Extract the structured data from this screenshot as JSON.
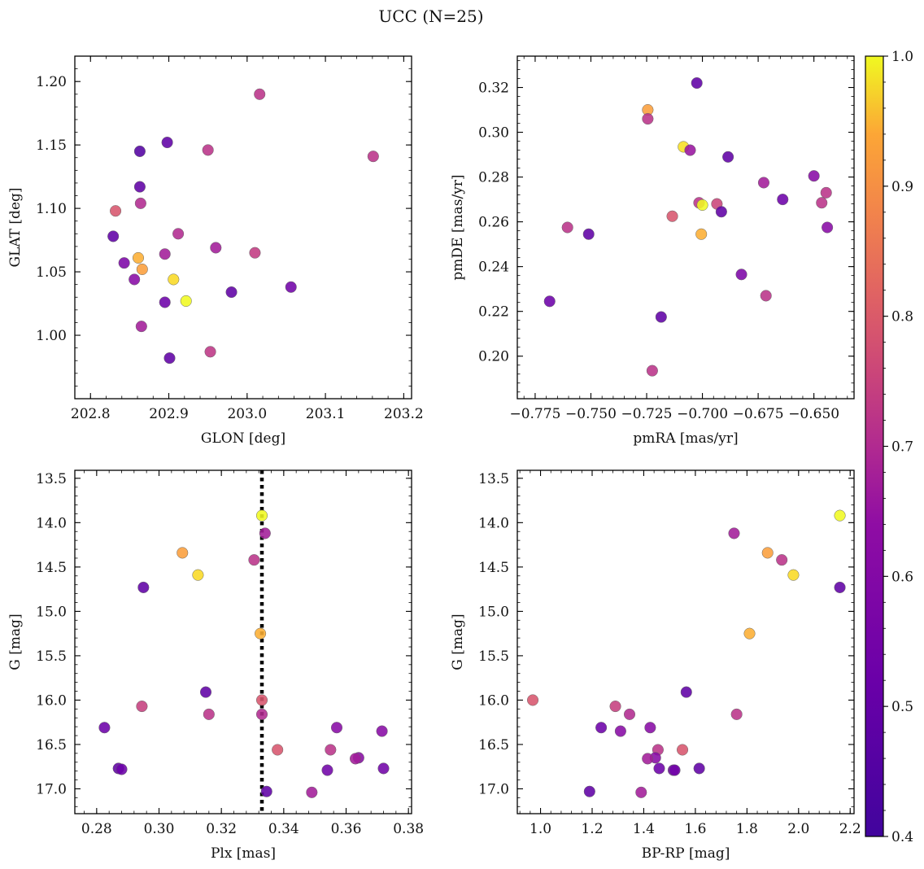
{
  "figure": {
    "title": "UCC (N=25)"
  },
  "colorbar": {
    "min": 0.4,
    "max": 1.0,
    "ticks": [
      "0.4",
      "0.5",
      "0.6",
      "0.7",
      "0.8",
      "0.9",
      "1.0"
    ],
    "colormap": "plasma"
  },
  "chart_data": [
    {
      "type": "scatter",
      "id": "p1",
      "xlabel": "GLON [deg]",
      "ylabel": "GLAT [deg]",
      "xlim": [
        202.78,
        203.21
      ],
      "ylim": [
        0.95,
        1.22
      ],
      "xticks": [
        202.8,
        202.9,
        203.0,
        203.1,
        203.2
      ],
      "xtick_labels": [
        "202.8",
        "202.9",
        "203.0",
        "203.1",
        "203.2"
      ],
      "yticks": [
        1.0,
        1.05,
        1.1,
        1.15,
        1.2
      ],
      "ytick_labels": [
        "1.00",
        "1.05",
        "1.10",
        "1.15",
        "1.20"
      ],
      "points": [
        {
          "x": 202.863,
          "y": 1.145,
          "c": 0.43
        },
        {
          "x": 202.898,
          "y": 1.152,
          "c": 0.45
        },
        {
          "x": 202.95,
          "y": 1.146,
          "c": 0.62
        },
        {
          "x": 203.016,
          "y": 1.19,
          "c": 0.62
        },
        {
          "x": 203.161,
          "y": 1.141,
          "c": 0.62
        },
        {
          "x": 202.863,
          "y": 1.117,
          "c": 0.45
        },
        {
          "x": 202.832,
          "y": 1.098,
          "c": 0.7
        },
        {
          "x": 202.864,
          "y": 1.104,
          "c": 0.6
        },
        {
          "x": 202.829,
          "y": 1.078,
          "c": 0.45
        },
        {
          "x": 202.912,
          "y": 1.08,
          "c": 0.6
        },
        {
          "x": 202.96,
          "y": 1.069,
          "c": 0.57
        },
        {
          "x": 203.01,
          "y": 1.065,
          "c": 0.64
        },
        {
          "x": 202.895,
          "y": 1.064,
          "c": 0.57
        },
        {
          "x": 202.861,
          "y": 1.061,
          "c": 0.88
        },
        {
          "x": 202.843,
          "y": 1.057,
          "c": 0.5
        },
        {
          "x": 202.866,
          "y": 1.052,
          "c": 0.85
        },
        {
          "x": 202.856,
          "y": 1.044,
          "c": 0.52
        },
        {
          "x": 202.906,
          "y": 1.044,
          "c": 0.95
        },
        {
          "x": 203.056,
          "y": 1.038,
          "c": 0.48
        },
        {
          "x": 202.98,
          "y": 1.034,
          "c": 0.45
        },
        {
          "x": 202.922,
          "y": 1.027,
          "c": 1.0
        },
        {
          "x": 202.895,
          "y": 1.026,
          "c": 0.47
        },
        {
          "x": 202.865,
          "y": 1.007,
          "c": 0.57
        },
        {
          "x": 202.953,
          "y": 0.987,
          "c": 0.63
        },
        {
          "x": 202.901,
          "y": 0.982,
          "c": 0.45
        }
      ]
    },
    {
      "type": "scatter",
      "id": "p2",
      "xlabel": "pmRA [mas/yr]",
      "ylabel": "pmDE [mas/yr]",
      "xlim": [
        -0.783,
        -0.632
      ],
      "ylim": [
        0.181,
        0.334
      ],
      "xticks": [
        -0.775,
        -0.75,
        -0.725,
        -0.7,
        -0.675,
        -0.65
      ],
      "xtick_labels": [
        "−0.775",
        "−0.750",
        "−0.725",
        "−0.700",
        "−0.675",
        "−0.650"
      ],
      "yticks": [
        0.2,
        0.22,
        0.24,
        0.26,
        0.28,
        0.3,
        0.32
      ],
      "ytick_labels": [
        "0.20",
        "0.22",
        "0.24",
        "0.26",
        "0.28",
        "0.30",
        "0.32"
      ],
      "points": [
        {
          "x": -0.7025,
          "y": 0.322,
          "c": 0.45
        },
        {
          "x": -0.7245,
          "y": 0.31,
          "c": 0.85
        },
        {
          "x": -0.7245,
          "y": 0.306,
          "c": 0.62
        },
        {
          "x": -0.7085,
          "y": 0.2935,
          "c": 0.96
        },
        {
          "x": -0.7055,
          "y": 0.292,
          "c": 0.55
        },
        {
          "x": -0.6885,
          "y": 0.289,
          "c": 0.45
        },
        {
          "x": -0.65,
          "y": 0.2805,
          "c": 0.52
        },
        {
          "x": -0.6725,
          "y": 0.2775,
          "c": 0.57
        },
        {
          "x": -0.6445,
          "y": 0.273,
          "c": 0.62
        },
        {
          "x": -0.664,
          "y": 0.27,
          "c": 0.47
        },
        {
          "x": -0.6465,
          "y": 0.2685,
          "c": 0.62
        },
        {
          "x": -0.7015,
          "y": 0.2685,
          "c": 0.62
        },
        {
          "x": -0.6935,
          "y": 0.268,
          "c": 0.66
        },
        {
          "x": -0.7,
          "y": 0.2675,
          "c": 1.0
        },
        {
          "x": -0.6915,
          "y": 0.2645,
          "c": 0.45
        },
        {
          "x": -0.7135,
          "y": 0.2625,
          "c": 0.7
        },
        {
          "x": -0.644,
          "y": 0.2575,
          "c": 0.52
        },
        {
          "x": -0.7605,
          "y": 0.2575,
          "c": 0.62
        },
        {
          "x": -0.751,
          "y": 0.2545,
          "c": 0.45
        },
        {
          "x": -0.7005,
          "y": 0.2545,
          "c": 0.88
        },
        {
          "x": -0.6825,
          "y": 0.2365,
          "c": 0.5
        },
        {
          "x": -0.6715,
          "y": 0.227,
          "c": 0.62
        },
        {
          "x": -0.7685,
          "y": 0.2245,
          "c": 0.47
        },
        {
          "x": -0.7185,
          "y": 0.2175,
          "c": 0.45
        },
        {
          "x": -0.7225,
          "y": 0.1935,
          "c": 0.62
        }
      ]
    },
    {
      "type": "scatter",
      "id": "p3",
      "xlabel": "Plx [mas]",
      "ylabel": "G [mag]",
      "xlim": [
        0.273,
        0.381
      ],
      "ylim": [
        17.28,
        13.41
      ],
      "y_inverted": true,
      "xticks": [
        0.28,
        0.3,
        0.32,
        0.34,
        0.36,
        0.38
      ],
      "xtick_labels": [
        "0.28",
        "0.30",
        "0.32",
        "0.34",
        "0.36",
        "0.38"
      ],
      "yticks": [
        13.5,
        14.0,
        14.5,
        15.0,
        15.5,
        16.0,
        16.5,
        17.0
      ],
      "ytick_labels": [
        "13.5",
        "14.0",
        "14.5",
        "15.0",
        "15.5",
        "16.0",
        "16.5",
        "17.0"
      ],
      "vline": {
        "x": 0.333,
        "style": "dotted"
      },
      "points": [
        {
          "x": 0.333,
          "y": 13.92,
          "c": 1.0
        },
        {
          "x": 0.334,
          "y": 14.12,
          "c": 0.57
        },
        {
          "x": 0.3075,
          "y": 14.34,
          "c": 0.85
        },
        {
          "x": 0.3305,
          "y": 14.42,
          "c": 0.62
        },
        {
          "x": 0.3125,
          "y": 14.59,
          "c": 0.95
        },
        {
          "x": 0.295,
          "y": 14.73,
          "c": 0.45
        },
        {
          "x": 0.3325,
          "y": 15.25,
          "c": 0.88
        },
        {
          "x": 0.315,
          "y": 15.91,
          "c": 0.45
        },
        {
          "x": 0.333,
          "y": 16.0,
          "c": 0.7
        },
        {
          "x": 0.2945,
          "y": 16.07,
          "c": 0.65
        },
        {
          "x": 0.316,
          "y": 16.16,
          "c": 0.62
        },
        {
          "x": 0.333,
          "y": 16.16,
          "c": 0.6
        },
        {
          "x": 0.2825,
          "y": 16.31,
          "c": 0.47
        },
        {
          "x": 0.357,
          "y": 16.31,
          "c": 0.52
        },
        {
          "x": 0.3715,
          "y": 16.35,
          "c": 0.52
        },
        {
          "x": 0.338,
          "y": 16.56,
          "c": 0.7
        },
        {
          "x": 0.355,
          "y": 16.56,
          "c": 0.62
        },
        {
          "x": 0.364,
          "y": 16.65,
          "c": 0.52
        },
        {
          "x": 0.363,
          "y": 16.66,
          "c": 0.57
        },
        {
          "x": 0.287,
          "y": 16.77,
          "c": 0.45
        },
        {
          "x": 0.288,
          "y": 16.78,
          "c": 0.47
        },
        {
          "x": 0.372,
          "y": 16.77,
          "c": 0.48
        },
        {
          "x": 0.354,
          "y": 16.79,
          "c": 0.48
        },
        {
          "x": 0.3345,
          "y": 17.03,
          "c": 0.45
        },
        {
          "x": 0.349,
          "y": 17.04,
          "c": 0.57
        }
      ]
    },
    {
      "type": "scatter",
      "id": "p4",
      "xlabel": "BP-RP [mag]",
      "ylabel": "G [mag]",
      "xlim": [
        0.91,
        2.215
      ],
      "ylim": [
        17.28,
        13.41
      ],
      "y_inverted": true,
      "xticks": [
        1.0,
        1.2,
        1.4,
        1.6,
        1.8,
        2.0,
        2.2
      ],
      "xtick_labels": [
        "1.0",
        "1.2",
        "1.4",
        "1.6",
        "1.8",
        "2.0",
        "2.2"
      ],
      "yticks": [
        13.5,
        14.0,
        14.5,
        15.0,
        15.5,
        16.0,
        16.5,
        17.0
      ],
      "ytick_labels": [
        "13.5",
        "14.0",
        "14.5",
        "15.0",
        "15.5",
        "16.0",
        "16.5",
        "17.0"
      ],
      "points": [
        {
          "x": 2.16,
          "y": 13.92,
          "c": 1.0
        },
        {
          "x": 1.75,
          "y": 14.12,
          "c": 0.57
        },
        {
          "x": 1.88,
          "y": 14.34,
          "c": 0.85
        },
        {
          "x": 1.935,
          "y": 14.42,
          "c": 0.62
        },
        {
          "x": 1.98,
          "y": 14.59,
          "c": 0.95
        },
        {
          "x": 2.16,
          "y": 14.73,
          "c": 0.45
        },
        {
          "x": 1.81,
          "y": 15.25,
          "c": 0.88
        },
        {
          "x": 1.565,
          "y": 15.91,
          "c": 0.45
        },
        {
          "x": 0.97,
          "y": 16.0,
          "c": 0.7
        },
        {
          "x": 1.29,
          "y": 16.07,
          "c": 0.65
        },
        {
          "x": 1.76,
          "y": 16.16,
          "c": 0.62
        },
        {
          "x": 1.345,
          "y": 16.16,
          "c": 0.6
        },
        {
          "x": 1.235,
          "y": 16.31,
          "c": 0.47
        },
        {
          "x": 1.425,
          "y": 16.31,
          "c": 0.52
        },
        {
          "x": 1.31,
          "y": 16.35,
          "c": 0.52
        },
        {
          "x": 1.55,
          "y": 16.56,
          "c": 0.7
        },
        {
          "x": 1.455,
          "y": 16.56,
          "c": 0.62
        },
        {
          "x": 1.445,
          "y": 16.65,
          "c": 0.52
        },
        {
          "x": 1.415,
          "y": 16.66,
          "c": 0.57
        },
        {
          "x": 1.615,
          "y": 16.77,
          "c": 0.45
        },
        {
          "x": 1.46,
          "y": 16.77,
          "c": 0.47
        },
        {
          "x": 1.515,
          "y": 16.79,
          "c": 0.48
        },
        {
          "x": 1.52,
          "y": 16.79,
          "c": 0.48
        },
        {
          "x": 1.19,
          "y": 17.03,
          "c": 0.45
        },
        {
          "x": 1.39,
          "y": 17.04,
          "c": 0.57
        }
      ]
    }
  ]
}
